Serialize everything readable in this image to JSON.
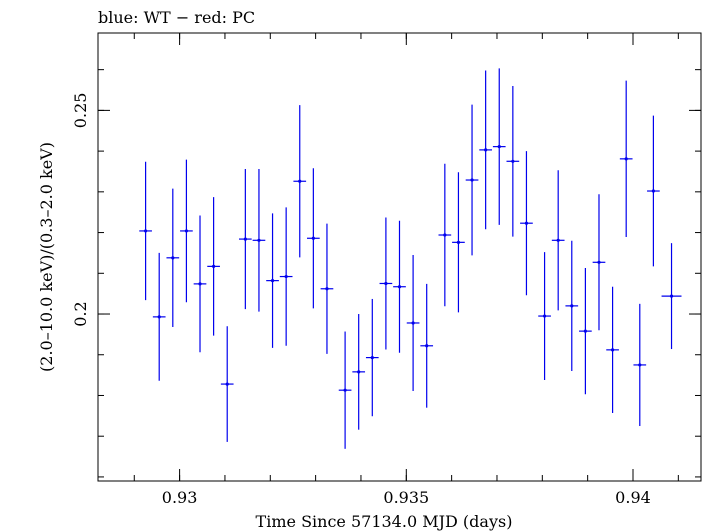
{
  "chart_data": {
    "type": "scatter",
    "title": "blue: WT − red: PC",
    "xlabel": "Time Since 57134.0 MJD (days)",
    "ylabel": "(2.0–10.0 keV)/(0.3–2.0 keV)",
    "xlim": [
      0.9282,
      0.9415
    ],
    "ylim": [
      0.159,
      0.269
    ],
    "xticks": [
      {
        "value": 0.93,
        "label": "0.93"
      },
      {
        "value": 0.935,
        "label": "0.935"
      },
      {
        "value": 0.94,
        "label": "0.94"
      }
    ],
    "yticks": [
      {
        "value": 0.2,
        "label": "0.2"
      },
      {
        "value": 0.25,
        "label": "0.25"
      }
    ],
    "x_minor_step": 0.001,
    "y_minor_step": 0.01,
    "grid": false,
    "series": [
      {
        "name": "WT",
        "color": "#0000ee",
        "points": [
          {
            "x": 0.92925,
            "y": 0.2204,
            "xerr": 0.00014,
            "yerr": 0.017
          },
          {
            "x": 0.92955,
            "y": 0.1993,
            "xerr": 0.00014,
            "yerr": 0.0157
          },
          {
            "x": 0.92985,
            "y": 0.2138,
            "xerr": 0.00014,
            "yerr": 0.017
          },
          {
            "x": 0.93015,
            "y": 0.2204,
            "xerr": 0.00014,
            "yerr": 0.0175
          },
          {
            "x": 0.93045,
            "y": 0.2074,
            "xerr": 0.00014,
            "yerr": 0.0168
          },
          {
            "x": 0.93075,
            "y": 0.2117,
            "xerr": 0.00014,
            "yerr": 0.017
          },
          {
            "x": 0.93105,
            "y": 0.1828,
            "xerr": 0.00014,
            "yerr": 0.0142
          },
          {
            "x": 0.93145,
            "y": 0.2184,
            "xerr": 0.00014,
            "yerr": 0.0172
          },
          {
            "x": 0.93175,
            "y": 0.2181,
            "xerr": 0.00014,
            "yerr": 0.0175
          },
          {
            "x": 0.93205,
            "y": 0.2082,
            "xerr": 0.00014,
            "yerr": 0.0165
          },
          {
            "x": 0.93235,
            "y": 0.2092,
            "xerr": 0.00014,
            "yerr": 0.017
          },
          {
            "x": 0.93265,
            "y": 0.2326,
            "xerr": 0.00014,
            "yerr": 0.0187
          },
          {
            "x": 0.93295,
            "y": 0.2186,
            "xerr": 0.00014,
            "yerr": 0.0172
          },
          {
            "x": 0.93325,
            "y": 0.2062,
            "xerr": 0.00014,
            "yerr": 0.016
          },
          {
            "x": 0.93365,
            "y": 0.1813,
            "xerr": 0.00014,
            "yerr": 0.0144
          },
          {
            "x": 0.93395,
            "y": 0.1858,
            "xerr": 0.00014,
            "yerr": 0.0142
          },
          {
            "x": 0.93425,
            "y": 0.1893,
            "xerr": 0.00014,
            "yerr": 0.0144
          },
          {
            "x": 0.93455,
            "y": 0.2075,
            "xerr": 0.00014,
            "yerr": 0.0162
          },
          {
            "x": 0.93485,
            "y": 0.2067,
            "xerr": 0.00014,
            "yerr": 0.0162
          },
          {
            "x": 0.93515,
            "y": 0.1978,
            "xerr": 0.00014,
            "yerr": 0.0167
          },
          {
            "x": 0.93545,
            "y": 0.1922,
            "xerr": 0.00014,
            "yerr": 0.0152
          },
          {
            "x": 0.93585,
            "y": 0.2194,
            "xerr": 0.00014,
            "yerr": 0.0175
          },
          {
            "x": 0.93615,
            "y": 0.2176,
            "xerr": 0.00014,
            "yerr": 0.0172
          },
          {
            "x": 0.93645,
            "y": 0.2329,
            "xerr": 0.00014,
            "yerr": 0.0185
          },
          {
            "x": 0.93675,
            "y": 0.2403,
            "xerr": 0.00014,
            "yerr": 0.0195
          },
          {
            "x": 0.93705,
            "y": 0.2411,
            "xerr": 0.00014,
            "yerr": 0.0192
          },
          {
            "x": 0.93735,
            "y": 0.2375,
            "xerr": 0.00014,
            "yerr": 0.0185
          },
          {
            "x": 0.93765,
            "y": 0.2223,
            "xerr": 0.00014,
            "yerr": 0.0177
          },
          {
            "x": 0.93805,
            "y": 0.1995,
            "xerr": 0.00014,
            "yerr": 0.0157
          },
          {
            "x": 0.93835,
            "y": 0.2181,
            "xerr": 0.00014,
            "yerr": 0.0172
          },
          {
            "x": 0.93865,
            "y": 0.202,
            "xerr": 0.00014,
            "yerr": 0.016
          },
          {
            "x": 0.93895,
            "y": 0.1958,
            "xerr": 0.00014,
            "yerr": 0.0155
          },
          {
            "x": 0.93925,
            "y": 0.2127,
            "xerr": 0.00014,
            "yerr": 0.0167
          },
          {
            "x": 0.93955,
            "y": 0.1912,
            "xerr": 0.00014,
            "yerr": 0.0155
          },
          {
            "x": 0.93985,
            "y": 0.2381,
            "xerr": 0.00014,
            "yerr": 0.0192
          },
          {
            "x": 0.94015,
            "y": 0.1875,
            "xerr": 0.00014,
            "yerr": 0.015
          },
          {
            "x": 0.94045,
            "y": 0.2302,
            "xerr": 0.00014,
            "yerr": 0.0185
          },
          {
            "x": 0.94085,
            "y": 0.2044,
            "xerr": 0.00022,
            "yerr": 0.013
          }
        ]
      }
    ]
  }
}
